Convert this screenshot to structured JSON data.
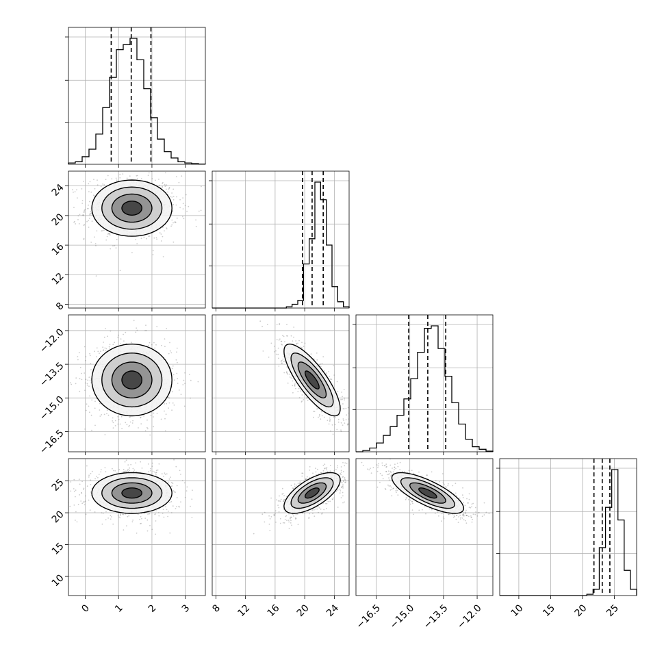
{
  "chart_data": {
    "type": "corner",
    "grid": true,
    "parameters": [
      {
        "id": "p0",
        "range": [
          -0.5,
          3.6
        ],
        "ticks": [
          0,
          1,
          2,
          3
        ],
        "tick_labels": [
          "0",
          "1",
          "2",
          "3"
        ],
        "quantiles": [
          0.78,
          1.38,
          1.97
        ],
        "hist_density": [
          0.01,
          0.02,
          0.06,
          0.12,
          0.24,
          0.45,
          0.69,
          0.91,
          0.95,
          1.0,
          0.83,
          0.6,
          0.37,
          0.2,
          0.1,
          0.05,
          0.02,
          0.01,
          0.005,
          0.002
        ]
      },
      {
        "id": "p1",
        "range": [
          7.5,
          26.0
        ],
        "ticks": [
          8,
          12,
          16,
          20,
          24
        ],
        "tick_labels": [
          "8",
          "12",
          "16",
          "20",
          "24"
        ],
        "quantiles": [
          19.7,
          21.0,
          22.5
        ],
        "hist_density": [
          0.0,
          0.0,
          0.0,
          0.0,
          0.0,
          0.0,
          0.0,
          0.0,
          0.0,
          0.0,
          0.0,
          0.0,
          0.0,
          0.01,
          0.03,
          0.06,
          0.35,
          0.55,
          1.0,
          0.86,
          0.5,
          0.17,
          0.05,
          0.01
        ]
      },
      {
        "id": "p2",
        "range": [
          -17.4,
          -11.3
        ],
        "ticks": [
          -16.5,
          -15.0,
          -13.5,
          -12.0
        ],
        "tick_labels": [
          "−16.5",
          "−15.0",
          "−13.5",
          "−12.0"
        ],
        "quantiles": [
          -15.05,
          -14.2,
          -13.4
        ],
        "hist_density": [
          0.0,
          0.01,
          0.03,
          0.07,
          0.13,
          0.2,
          0.29,
          0.42,
          0.58,
          0.79,
          0.98,
          1.0,
          0.82,
          0.6,
          0.39,
          0.22,
          0.1,
          0.04,
          0.02,
          0.005
        ]
      },
      {
        "id": "p3",
        "range": [
          7.0,
          28.5
        ],
        "ticks": [
          10,
          15,
          20,
          25
        ],
        "tick_labels": [
          "10",
          "15",
          "20",
          "25"
        ],
        "quantiles": [
          21.8,
          23.1,
          24.3
        ],
        "hist_density": [
          0.0,
          0.0,
          0.0,
          0.0,
          0.0,
          0.0,
          0.0,
          0.0,
          0.0,
          0.0,
          0.0,
          0.0,
          0.0,
          0.0,
          0.01,
          0.05,
          0.38,
          0.7,
          1.0,
          0.6,
          0.2,
          0.05
        ]
      }
    ],
    "pairs": [
      {
        "x": "p0",
        "y": "p1",
        "mean": [
          1.4,
          21.0
        ],
        "sd": [
          0.6,
          1.9
        ],
        "rho": 0.0
      },
      {
        "x": "p0",
        "y": "p2",
        "mean": [
          1.4,
          -14.2
        ],
        "sd": [
          0.6,
          0.8
        ],
        "rho": 0.0
      },
      {
        "x": "p1",
        "y": "p2",
        "mean": [
          21.0,
          -14.2
        ],
        "sd": [
          1.9,
          0.8
        ],
        "rho": -0.8
      },
      {
        "x": "p0",
        "y": "p3",
        "mean": [
          1.4,
          23.1
        ],
        "sd": [
          0.6,
          1.6
        ],
        "rho": 0.0
      },
      {
        "x": "p1",
        "y": "p3",
        "mean": [
          21.0,
          23.1
        ],
        "sd": [
          1.9,
          1.6
        ],
        "rho": 0.65
      },
      {
        "x": "p2",
        "y": "p3",
        "mean": [
          -14.2,
          23.1
        ],
        "sd": [
          0.8,
          1.6
        ],
        "rho": -0.75
      }
    ],
    "contour_levels_sigma": [
      0.5,
      1.0,
      1.5,
      2.0
    ]
  }
}
